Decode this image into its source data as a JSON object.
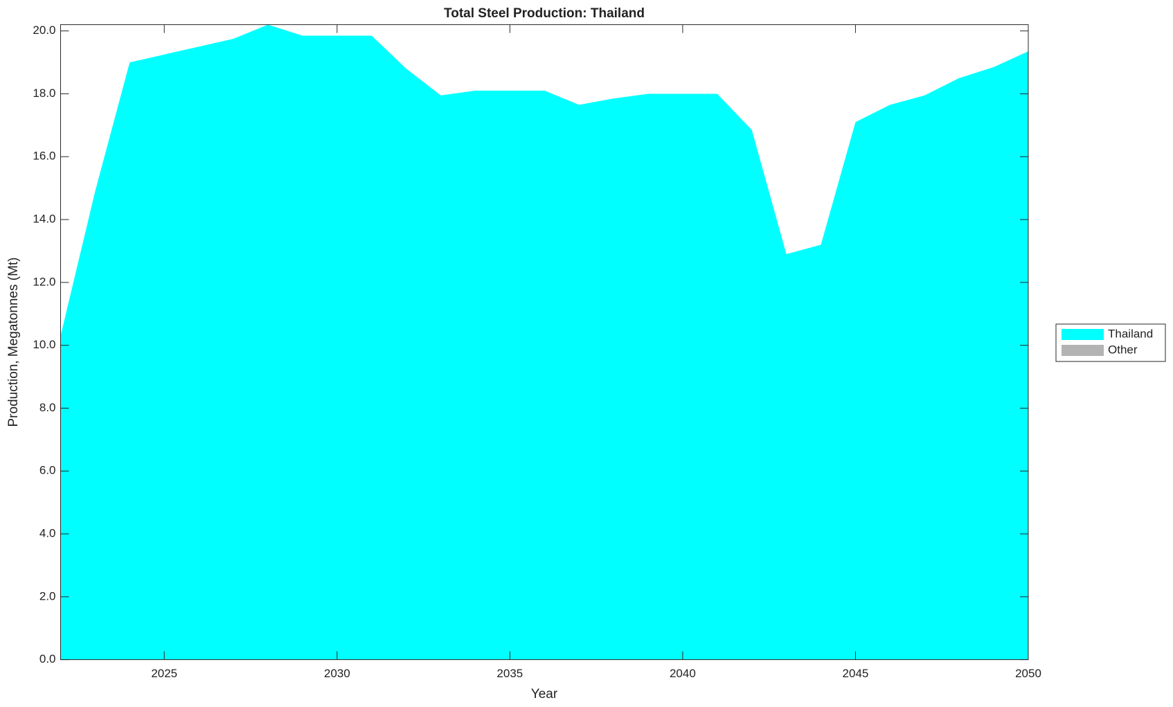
{
  "chart_data": {
    "type": "stacked_area",
    "title": "Total Steel Production: Thailand",
    "xlabel": "Year",
    "ylabel": "Production, Megatonnes (Mt)",
    "x": [
      2022,
      2023,
      2024,
      2025,
      2026,
      2027,
      2028,
      2029,
      2030,
      2031,
      2032,
      2033,
      2034,
      2035,
      2036,
      2037,
      2038,
      2039,
      2040,
      2041,
      2042,
      2043,
      2044,
      2045,
      2046,
      2047,
      2048,
      2049,
      2050
    ],
    "series": [
      {
        "name": "Thailand",
        "color": "#00ffff",
        "values": [
          10.3,
          14.9,
          19.0,
          19.25,
          19.5,
          19.75,
          20.2,
          19.85,
          19.85,
          19.85,
          18.8,
          17.95,
          18.1,
          18.1,
          18.1,
          17.65,
          17.85,
          18.0,
          18.0,
          18.0,
          16.85,
          12.9,
          13.2,
          17.1,
          17.65,
          17.95,
          18.5,
          18.85,
          19.35
        ]
      },
      {
        "name": "Other",
        "color": "#b3b3b3",
        "values": [
          0,
          0,
          0,
          0,
          0,
          0,
          0,
          0,
          0,
          0,
          0,
          0,
          0,
          0,
          0,
          0,
          0,
          0,
          0,
          0,
          0,
          0,
          0,
          0,
          0,
          0,
          0,
          0,
          0
        ]
      }
    ],
    "xlim": [
      2022,
      2050
    ],
    "ylim": [
      0,
      20.2
    ],
    "xticks": [
      2025,
      2030,
      2035,
      2040,
      2045,
      2050
    ],
    "yticks": [
      {
        "value": 0,
        "label": "0.0"
      },
      {
        "value": 2,
        "label": "2.0"
      },
      {
        "value": 4,
        "label": "4.0"
      },
      {
        "value": 6,
        "label": "6.0"
      },
      {
        "value": 8,
        "label": "8.0"
      },
      {
        "value": 10,
        "label": "10.0"
      },
      {
        "value": 12,
        "label": "12.0"
      },
      {
        "value": 14,
        "label": "14.0"
      },
      {
        "value": 16,
        "label": "16.0"
      },
      {
        "value": 18,
        "label": "18.0"
      },
      {
        "value": 20,
        "label": "20.0"
      }
    ],
    "legend": "right"
  }
}
